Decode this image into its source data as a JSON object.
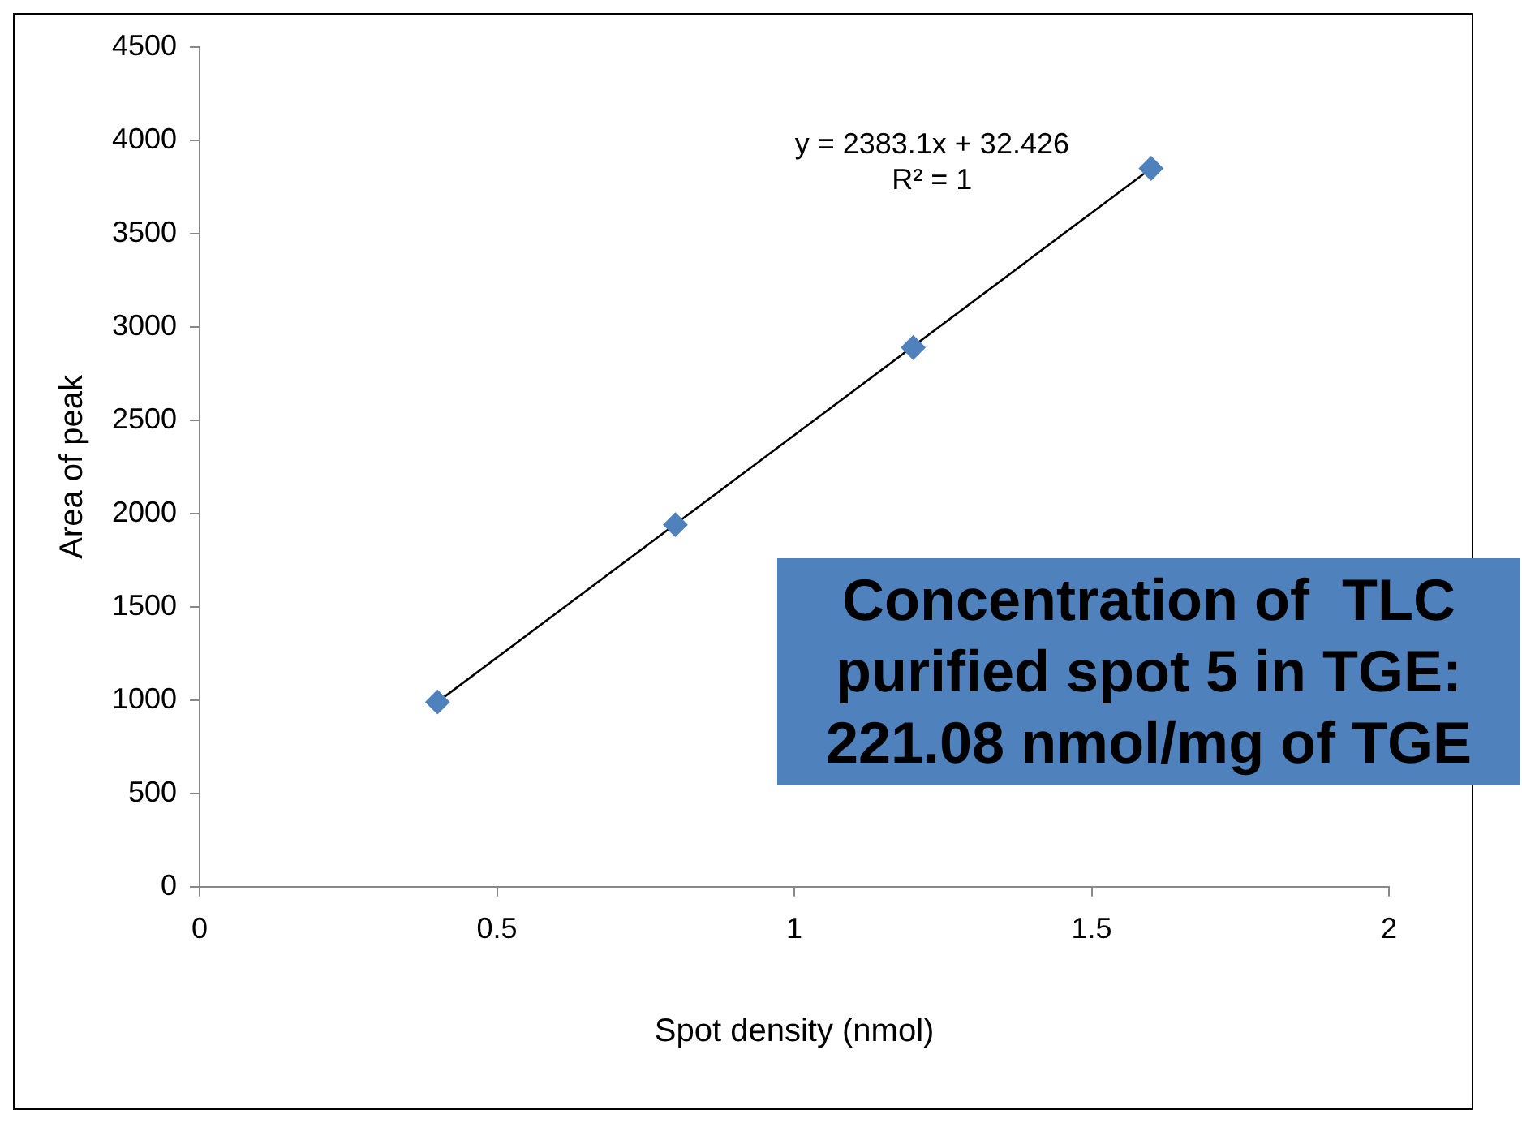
{
  "chart_data": {
    "type": "scatter",
    "xlabel": "Spot density (nmol)",
    "ylabel": "Area of peak",
    "series": [
      {
        "color": "#4f81bd",
        "marker": "diamond",
        "x": [
          0.4,
          0.8,
          1.2,
          1.6
        ],
        "values": [
          990,
          1940,
          2890,
          3850
        ]
      },
      {
        "type": "line",
        "color": "#000000",
        "marker": "none",
        "x": [
          0.4,
          1.6
        ],
        "values": [
          990,
          3850
        ]
      }
    ],
    "xlim": [
      0,
      2
    ],
    "xticks": [
      0,
      0.5,
      1,
      1.5,
      2
    ],
    "ylim": [
      0,
      4500
    ],
    "yticks": [
      0,
      500,
      1000,
      1500,
      2000,
      2500,
      3000,
      3500,
      4000,
      4500
    ],
    "grid": false,
    "legend": false,
    "annotations": [
      "y = 2383.1x + 32.426",
      "R² = 1",
      "Concentration of  TLC purified spot 5 in TGE: 221.08 nmol/mg of TGE"
    ]
  }
}
